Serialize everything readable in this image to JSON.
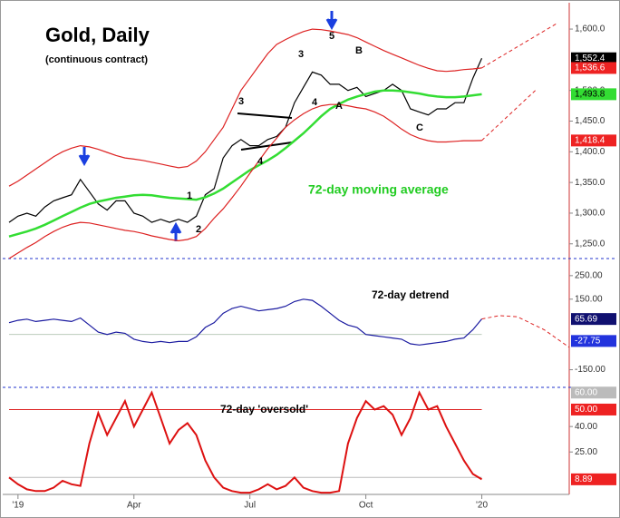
{
  "chart_data": [
    {
      "type": "line",
      "title": "Gold, Daily",
      "subtitle": "(continuous contract)",
      "annotations": [
        "72-day moving average",
        "3",
        "4",
        "3",
        "5",
        "4",
        "B",
        "A",
        "C",
        "1",
        "2"
      ],
      "ylim": [
        1226,
        1640
      ],
      "yticks": [
        {
          "value": 1600,
          "label": "1,600.0"
        },
        {
          "value": 1500,
          "label": "1,500.0"
        },
        {
          "value": 1450,
          "label": "1,450.0"
        },
        {
          "value": 1400,
          "label": "1,400.0"
        },
        {
          "value": 1350,
          "label": "1,350.0"
        },
        {
          "value": 1300,
          "label": "1,300.0"
        },
        {
          "value": 1250,
          "label": "1,250.0"
        }
      ],
      "series": [
        {
          "color": "#000000",
          "values": [
            1285,
            1295,
            1300,
            1295,
            1310,
            1320,
            1325,
            1330,
            1355,
            1335,
            1315,
            1305,
            1320,
            1320,
            1300,
            1295,
            1285,
            1290,
            1285,
            1290,
            1285,
            1295,
            1330,
            1340,
            1390,
            1410,
            1420,
            1410,
            1410,
            1420,
            1425,
            1440,
            1480,
            1505,
            1530,
            1525,
            1510,
            1510,
            1500,
            1505,
            1490,
            1495,
            1500,
            1510,
            1500,
            1470,
            1465,
            1460,
            1470,
            1470,
            1480,
            1480,
            1520,
            1552.4
          ]
        },
        {
          "color": "#33dd33",
          "values": [
            1262,
            1266,
            1270,
            1275,
            1281,
            1288,
            1295,
            1302,
            1309,
            1315,
            1319,
            1322,
            1325,
            1327,
            1329,
            1330,
            1329,
            1327,
            1325,
            1324,
            1323,
            1322,
            1326,
            1332,
            1340,
            1350,
            1360,
            1370,
            1378,
            1386,
            1395,
            1406,
            1418,
            1430,
            1444,
            1458,
            1470,
            1478,
            1485,
            1490,
            1494,
            1498,
            1500,
            1500,
            1499,
            1497,
            1495,
            1492,
            1490,
            1489,
            1489,
            1490,
            1492,
            1493.8
          ]
        },
        {
          "color": "#dd2222",
          "values": [
            1344,
            1352,
            1362,
            1372,
            1382,
            1392,
            1400,
            1406,
            1410,
            1408,
            1404,
            1399,
            1394,
            1390,
            1388,
            1386,
            1383,
            1380,
            1377,
            1374,
            1376,
            1385,
            1400,
            1420,
            1440,
            1470,
            1500,
            1520,
            1540,
            1560,
            1575,
            1583,
            1590,
            1596,
            1600,
            1599,
            1597,
            1594,
            1591,
            1586,
            1579,
            1572,
            1565,
            1559,
            1553,
            1547,
            1541,
            1536,
            1532,
            1531,
            1532,
            1534,
            1535,
            1536.6
          ]
        },
        {
          "color": "#dd2222",
          "values": [
            1226,
            1235,
            1244,
            1252,
            1262,
            1270,
            1277,
            1282,
            1285,
            1284,
            1281,
            1278,
            1275,
            1272,
            1270,
            1267,
            1263,
            1260,
            1257,
            1255,
            1257,
            1262,
            1275,
            1292,
            1307,
            1325,
            1344,
            1365,
            1385,
            1405,
            1422,
            1440,
            1452,
            1462,
            1470,
            1475,
            1477,
            1477,
            1475,
            1472,
            1470,
            1465,
            1458,
            1448,
            1437,
            1428,
            1422,
            1418,
            1416,
            1416,
            1417,
            1418,
            1418,
            1418.4
          ]
        }
      ],
      "projections": [
        {
          "color": "#dd2222",
          "x": [
            53,
            61.5
          ],
          "values": [
            1536.6,
            1610
          ]
        },
        {
          "color": "#dd2222",
          "x": [
            53,
            59
          ],
          "values": [
            1418.4,
            1500
          ]
        }
      ],
      "markers": [
        {
          "value": 1552.4,
          "label": "1,552.4",
          "color": "#000000",
          "text_color": "#ffffff"
        },
        {
          "value": 1536.6,
          "label": "1,536.6",
          "color": "#ee2222",
          "text_color": "#ffffff"
        },
        {
          "value": 1493.8,
          "label": "1,493.8",
          "color": "#33dd33",
          "text_color": "#000000"
        },
        {
          "value": 1418.4,
          "label": "1,418.4",
          "color": "#ee2222",
          "text_color": "#ffffff"
        }
      ]
    },
    {
      "type": "line",
      "annotations": [
        "72-day detrend"
      ],
      "ylim": [
        -225,
        315
      ],
      "yticks": [
        {
          "value": 250,
          "label": "250.00"
        },
        {
          "value": 150,
          "label": "150.00"
        },
        {
          "value": -150,
          "label": "-150.00"
        }
      ],
      "reference_lines": [
        {
          "value": 0,
          "color": "#bbccbb"
        }
      ],
      "series": [
        {
          "color": "#1a1aa0",
          "values": [
            50,
            60,
            65,
            55,
            60,
            65,
            60,
            55,
            70,
            40,
            10,
            0,
            10,
            5,
            -20,
            -30,
            -35,
            -30,
            -35,
            -30,
            -30,
            -10,
            30,
            50,
            90,
            110,
            120,
            110,
            100,
            105,
            110,
            120,
            140,
            150,
            145,
            120,
            90,
            60,
            40,
            30,
            0,
            -5,
            -10,
            -15,
            -20,
            -40,
            -45,
            -40,
            -35,
            -30,
            -20,
            -15,
            20,
            65.69
          ]
        }
      ],
      "projections": [
        {
          "color": "#dd2222",
          "x": [
            53,
            55,
            57,
            60,
            63
          ],
          "values": [
            65.69,
            80,
            75,
            20,
            -60
          ]
        }
      ],
      "markers": [
        {
          "value": 65.69,
          "label": "65.69",
          "color": "#101070",
          "text_color": "#ffffff"
        },
        {
          "value": -27.75,
          "label": "-27.75",
          "color": "#2233dd",
          "text_color": "#ffffff"
        }
      ]
    },
    {
      "type": "line",
      "annotations": [
        "72-day 'oversold'"
      ],
      "ylim": [
        0,
        62
      ],
      "yticks": [
        {
          "value": 40,
          "label": "40.00"
        },
        {
          "value": 25,
          "label": "25.00"
        }
      ],
      "reference_lines": [
        {
          "value": 50,
          "color": "#dd2222"
        },
        {
          "value": 10,
          "color": "#bbbbbb"
        }
      ],
      "series": [
        {
          "color": "#dd1111",
          "values": [
            10,
            6,
            3,
            2,
            2,
            4,
            8,
            6,
            5,
            30,
            48,
            35,
            45,
            55,
            40,
            50,
            60,
            45,
            30,
            38,
            42,
            35,
            20,
            10,
            4,
            2,
            1,
            1,
            3,
            6,
            3,
            5,
            10,
            4,
            2,
            1,
            1,
            2,
            30,
            45,
            55,
            50,
            52,
            47,
            35,
            45,
            60,
            50,
            52,
            40,
            30,
            20,
            12,
            8.89
          ]
        }
      ],
      "markers": [
        {
          "value": 60,
          "label": "60.00",
          "color": "#bbbbbb",
          "text_color": "#ffffff"
        },
        {
          "value": 50,
          "label": "50.00",
          "color": "#ee2222",
          "text_color": "#ffffff"
        },
        {
          "value": 8.89,
          "label": "8.89",
          "color": "#ee2222",
          "text_color": "#ffffff"
        }
      ],
      "xticks": [
        {
          "value": 1,
          "label": "'19"
        },
        {
          "value": 14,
          "label": "Apr"
        },
        {
          "value": 27,
          "label": "Jul"
        },
        {
          "value": 40,
          "label": "Oct"
        },
        {
          "value": 53,
          "label": "'20"
        }
      ]
    }
  ]
}
